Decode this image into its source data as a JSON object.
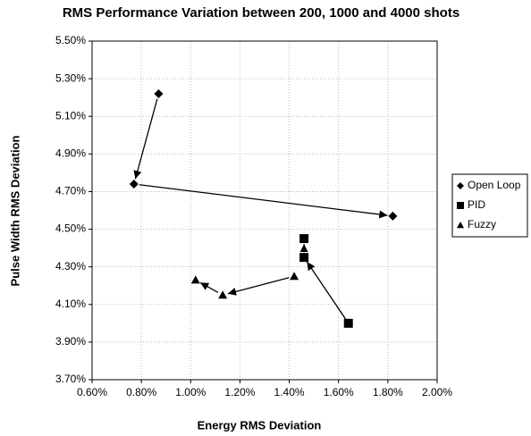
{
  "chart_data": {
    "type": "scatter",
    "title": "RMS Performance Variation between 200, 1000 and 4000 shots",
    "x_label": "Energy RMS Deviation",
    "y_label": "Pulse Width RMS Deviation",
    "series": [
      {
        "name": "Open Loop",
        "color": "#000000",
        "marker": "diamond",
        "x": [
          0.87,
          0.77,
          1.82
        ],
        "values": [
          5.22,
          4.74,
          4.57
        ]
      },
      {
        "name": "PID",
        "color": "#000000",
        "marker": "square",
        "x": [
          1.64,
          1.46,
          1.46
        ],
        "values": [
          4.0,
          4.35,
          4.45
        ]
      },
      {
        "name": "Fuzzy",
        "color": "#000000",
        "marker": "triangle",
        "x": [
          1.42,
          1.13,
          1.02
        ],
        "values": [
          4.25,
          4.15,
          4.23
        ]
      }
    ],
    "xlim": [
      0.6,
      2.0
    ],
    "xticks": [
      {
        "value": 0.6,
        "label": "0.60%"
      },
      {
        "value": 0.8,
        "label": "0.80%"
      },
      {
        "value": 1.0,
        "label": "1.00%"
      },
      {
        "value": 1.2,
        "label": "1.20%"
      },
      {
        "value": 1.4,
        "label": "1.40%"
      },
      {
        "value": 1.6,
        "label": "1.60%"
      },
      {
        "value": 1.8,
        "label": "1.80%"
      },
      {
        "value": 2.0,
        "label": "2.00%"
      }
    ],
    "ylim": [
      3.7,
      5.5
    ],
    "yticks": [
      {
        "value": 3.7,
        "label": "3.70%"
      },
      {
        "value": 3.9,
        "label": "3.90%"
      },
      {
        "value": 4.1,
        "label": "4.10%"
      },
      {
        "value": 4.3,
        "label": "4.30%"
      },
      {
        "value": 4.5,
        "label": "4.50%"
      },
      {
        "value": 4.7,
        "label": "4.70%"
      },
      {
        "value": 4.9,
        "label": "4.90%"
      },
      {
        "value": 5.1,
        "label": "5.10%"
      },
      {
        "value": 5.3,
        "label": "5.30%"
      },
      {
        "value": 5.5,
        "label": "5.50%"
      }
    ],
    "grid": true,
    "arrows": true,
    "legend": "right"
  }
}
